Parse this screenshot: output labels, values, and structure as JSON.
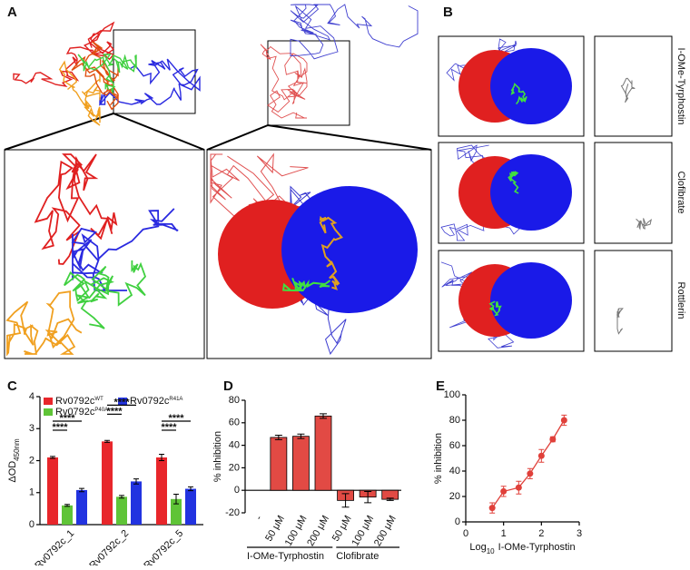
{
  "panel_labels": [
    "A",
    "B",
    "C",
    "D",
    "E"
  ],
  "compounds": [
    "I-OMe-Tyrphostin",
    "Clofibrate",
    "Rottlerin"
  ],
  "chart_data": [
    {
      "type": "grouped-bar",
      "ylabel": "ΔOD",
      "ylabel_subscript": "450nm",
      "categories": [
        "Rv0792c_1",
        "Rv0792c_2",
        "Rv0792c_5"
      ],
      "series": [
        {
          "name": "Rv0792c",
          "name_superscript": "WT",
          "color": "#e8262b",
          "values": [
            2.1,
            2.6,
            2.1
          ],
          "errors": [
            0.03,
            0.03,
            0.1
          ]
        },
        {
          "name": "Rv0792c",
          "name_superscript": "P40A",
          "color": "#5fc437",
          "values": [
            0.6,
            0.87,
            0.8
          ],
          "errors": [
            0.03,
            0.04,
            0.15
          ]
        },
        {
          "name": "Rv0792c",
          "name_superscript": "R41A",
          "color": "#2233e0",
          "values": [
            1.08,
            1.35,
            1.12
          ],
          "errors": [
            0.05,
            0.08,
            0.06
          ]
        }
      ],
      "ylim": [
        0,
        4
      ],
      "yticks": [
        0,
        1,
        2,
        3,
        4
      ],
      "annotations": [
        "****",
        "****",
        "****",
        "****",
        "****",
        "****"
      ]
    },
    {
      "type": "bar",
      "ylabel": "% inhibition",
      "categories": [
        "-",
        "50 μM",
        "100 μM",
        "200 μM",
        "50 μM",
        "100 μM",
        "200 μM"
      ],
      "values": [
        null,
        47,
        48,
        66,
        -9,
        -6,
        -8
      ],
      "errors": [
        null,
        2,
        2,
        2,
        6,
        5,
        1
      ],
      "color": "#e24a44",
      "ylim": [
        -20,
        80
      ],
      "yticks": [
        -20,
        0,
        20,
        40,
        60,
        80
      ],
      "groups": [
        {
          "label": "I-OMe-Tyrphostin",
          "span": [
            0,
            3
          ]
        },
        {
          "label": "Clofibrate",
          "span": [
            4,
            6
          ]
        }
      ]
    },
    {
      "type": "scatter",
      "ylabel": "% inhibition",
      "xlabel": "Log",
      "xlabel_subscript": "10",
      "xlabel_suffix": "I-OMe-Tyrphostin",
      "x": [
        0.7,
        1.0,
        1.4,
        1.7,
        2.0,
        2.3,
        2.6
      ],
      "values": [
        11,
        24,
        27,
        38,
        52,
        65,
        80
      ],
      "errors": [
        4,
        4,
        5,
        4,
        5,
        2,
        4
      ],
      "color": "#e0403a",
      "xlim": [
        0,
        3
      ],
      "xticks": [
        0,
        1,
        2,
        3
      ],
      "ylim": [
        0,
        100
      ],
      "yticks": [
        0,
        20,
        40,
        60,
        80,
        100
      ]
    }
  ]
}
